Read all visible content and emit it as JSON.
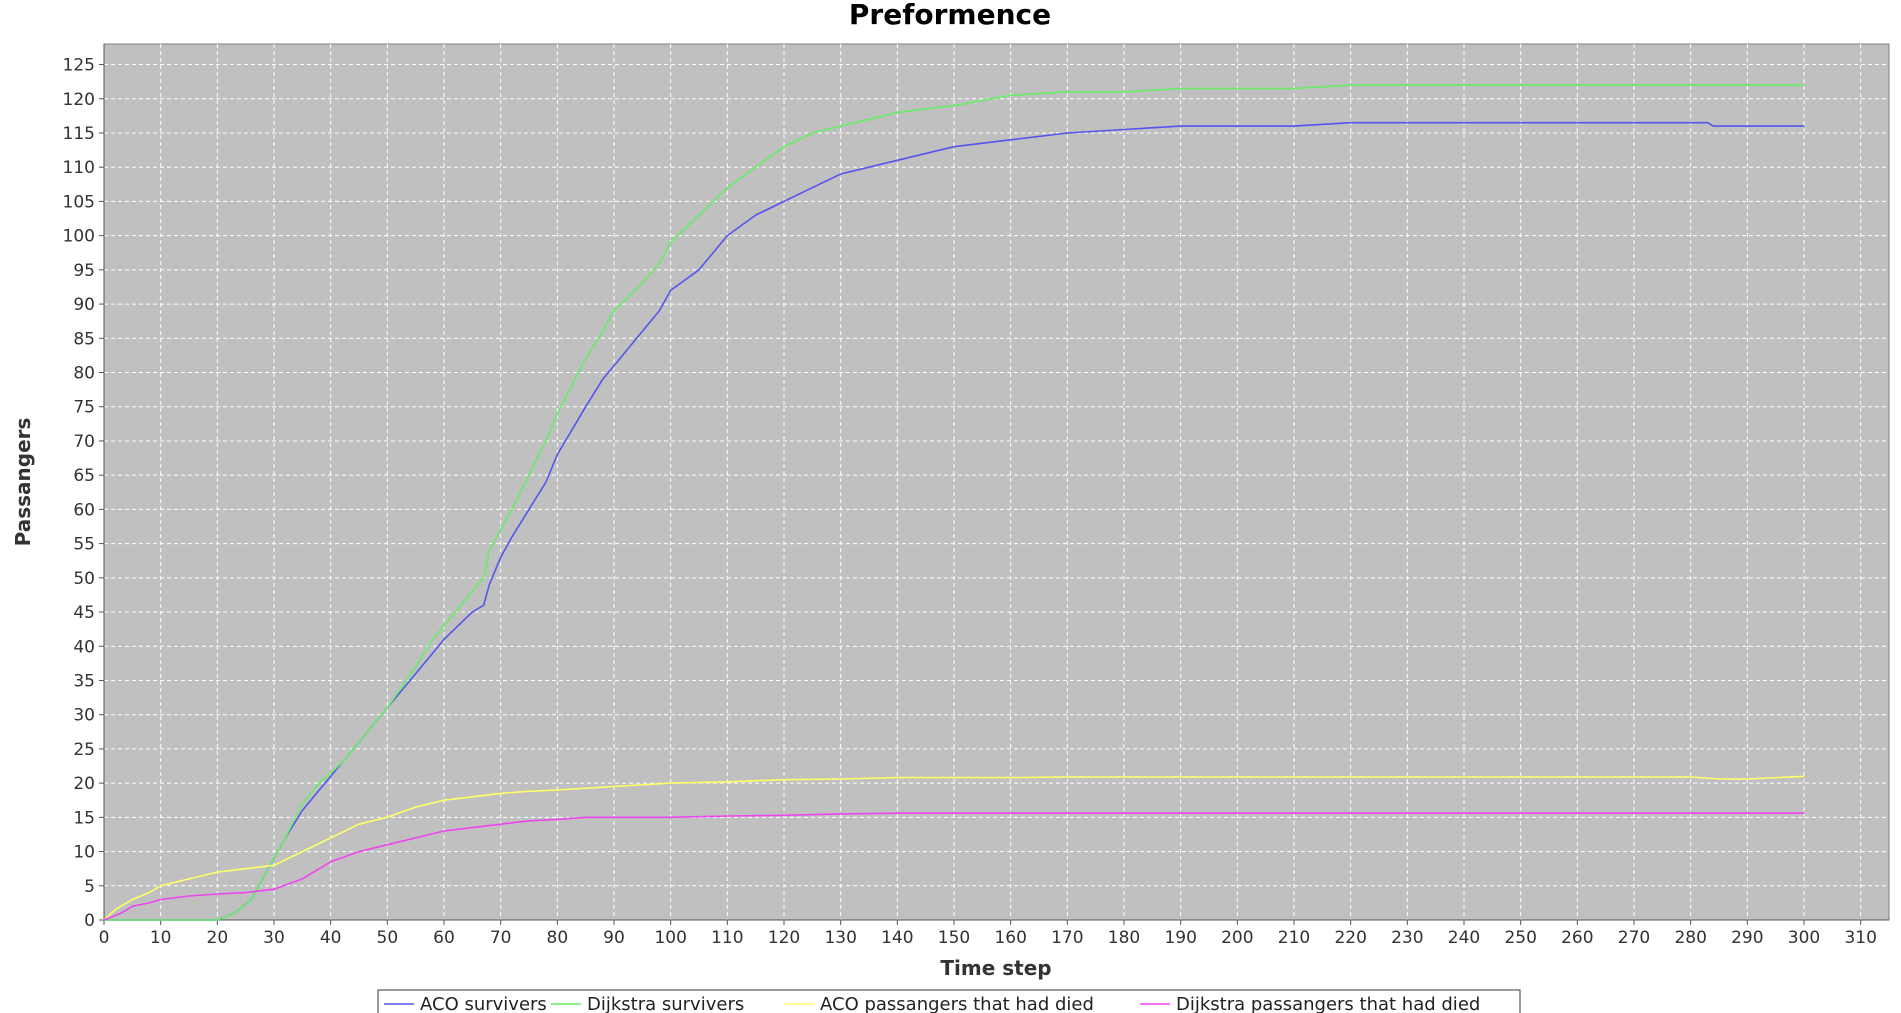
{
  "chart_data": {
    "type": "line",
    "title": "Preformence",
    "xlabel": "Time step",
    "ylabel": "Passangers",
    "xlim": [
      0,
      315
    ],
    "ylim": [
      0,
      128
    ],
    "xticks": [
      0,
      10,
      20,
      30,
      40,
      50,
      60,
      70,
      80,
      90,
      100,
      110,
      120,
      130,
      140,
      150,
      160,
      170,
      180,
      190,
      200,
      210,
      220,
      230,
      240,
      250,
      260,
      270,
      280,
      290,
      300,
      310
    ],
    "yticks": [
      0,
      5,
      10,
      15,
      20,
      25,
      30,
      35,
      40,
      45,
      50,
      55,
      60,
      65,
      70,
      75,
      80,
      85,
      90,
      95,
      100,
      105,
      110,
      115,
      120,
      125
    ],
    "grid": true,
    "legend_position": "bottom",
    "series": [
      {
        "name": "ACO survivers",
        "color": "#5555ee",
        "x": [
          0,
          20,
          23,
          26,
          28,
          30,
          32,
          35,
          38,
          42,
          45,
          48,
          50,
          55,
          58,
          60,
          65,
          67,
          68,
          70,
          72,
          75,
          78,
          80,
          85,
          88,
          90,
          95,
          98,
          100,
          105,
          110,
          115,
          120,
          125,
          130,
          135,
          140,
          150,
          160,
          170,
          180,
          190,
          200,
          210,
          220,
          230,
          250,
          260,
          270,
          283,
          284,
          300
        ],
        "y": [
          0,
          0,
          1,
          3,
          6,
          9,
          12,
          16,
          19,
          23,
          26,
          29,
          31,
          36,
          39,
          41,
          45,
          46,
          49,
          53,
          56,
          60,
          64,
          68,
          75,
          79,
          81,
          86,
          89,
          92,
          95,
          100,
          103,
          105,
          107,
          109,
          110,
          111,
          113,
          114,
          115,
          115.5,
          116,
          116,
          116,
          116.5,
          116.5,
          116.5,
          116.5,
          116.5,
          116.5,
          116,
          116
        ]
      },
      {
        "name": "Dijkstra survivers",
        "color": "#66ee66",
        "x": [
          0,
          20,
          23,
          26,
          28,
          30,
          32,
          35,
          38,
          42,
          45,
          48,
          50,
          55,
          58,
          60,
          65,
          67,
          68,
          70,
          72,
          75,
          78,
          80,
          85,
          88,
          90,
          95,
          98,
          100,
          105,
          110,
          115,
          120,
          125,
          130,
          135,
          140,
          150,
          160,
          170,
          180,
          190,
          200,
          210,
          220,
          230,
          250,
          260,
          270,
          280,
          290,
          300
        ],
        "y": [
          0,
          0,
          1,
          3,
          6,
          9,
          12,
          17,
          20,
          23,
          26,
          29,
          31,
          37,
          41,
          43,
          48,
          50,
          54,
          57,
          60,
          65,
          70,
          74,
          82,
          86,
          89,
          93,
          96,
          99,
          103,
          107,
          110,
          113,
          115,
          116,
          117,
          118,
          119,
          120.5,
          121,
          121,
          121.5,
          121.5,
          121.5,
          122,
          122,
          122,
          122,
          122,
          122,
          122,
          122
        ]
      },
      {
        "name": "ACO passangers that had died",
        "color": "#ffff66",
        "x": [
          0,
          2,
          5,
          8,
          10,
          15,
          20,
          25,
          30,
          35,
          40,
          45,
          50,
          55,
          60,
          65,
          70,
          75,
          80,
          90,
          100,
          110,
          120,
          130,
          140,
          150,
          160,
          170,
          180,
          190,
          200,
          220,
          240,
          260,
          280,
          285,
          290,
          300
        ],
        "y": [
          0,
          1.5,
          3,
          4,
          5,
          6,
          7,
          7.5,
          8,
          10,
          12,
          14,
          15,
          16.5,
          17.5,
          18,
          18.5,
          18.8,
          19,
          19.5,
          20,
          20.2,
          20.5,
          20.6,
          20.8,
          20.8,
          20.8,
          20.9,
          20.9,
          20.9,
          20.9,
          20.9,
          20.9,
          20.9,
          20.9,
          20.6,
          20.6,
          21
        ]
      },
      {
        "name": "Dijkstra passangers that had died",
        "color": "#ee44ee",
        "x": [
          0,
          3,
          5,
          8,
          10,
          15,
          20,
          25,
          30,
          35,
          38,
          40,
          45,
          50,
          55,
          60,
          65,
          70,
          75,
          80,
          85,
          90,
          100,
          110,
          120,
          130,
          140,
          150,
          200,
          250,
          300
        ],
        "y": [
          0,
          1,
          2,
          2.5,
          3,
          3.5,
          3.8,
          4,
          4.5,
          6,
          7.5,
          8.5,
          10,
          11,
          12,
          13,
          13.5,
          14,
          14.5,
          14.7,
          15,
          15,
          15,
          15.2,
          15.3,
          15.5,
          15.6,
          15.6,
          15.6,
          15.6,
          15.6
        ]
      }
    ]
  }
}
